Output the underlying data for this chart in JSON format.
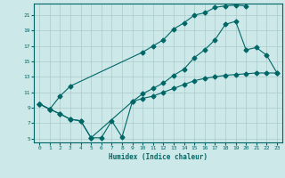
{
  "xlabel": "Humidex (Indice chaleur)",
  "bg_color": "#cce8e8",
  "grid_color": "#aacccc",
  "line_color": "#006666",
  "xlim": [
    -0.5,
    23.5
  ],
  "ylim": [
    4.5,
    22.5
  ],
  "yticks": [
    5,
    7,
    9,
    11,
    13,
    15,
    17,
    19,
    21
  ],
  "xticks": [
    0,
    1,
    2,
    3,
    4,
    5,
    6,
    7,
    8,
    9,
    10,
    11,
    12,
    13,
    14,
    15,
    16,
    17,
    18,
    19,
    20,
    21,
    22,
    23
  ],
  "line1_x": [
    0,
    1,
    2,
    3,
    10,
    11,
    12,
    13,
    14,
    15,
    16,
    17,
    18,
    19,
    20
  ],
  "line1_y": [
    9.5,
    8.8,
    10.5,
    11.8,
    16.2,
    17.0,
    17.8,
    19.2,
    20.0,
    21.0,
    21.3,
    22.0,
    22.2,
    22.3,
    22.2
  ],
  "line2_x": [
    0,
    1,
    2,
    3,
    4,
    5,
    9,
    10,
    11,
    12,
    13,
    14,
    15,
    16,
    17,
    18,
    19,
    20,
    21,
    22,
    23
  ],
  "line2_y": [
    9.5,
    8.8,
    8.2,
    7.5,
    7.3,
    5.1,
    9.8,
    10.8,
    11.5,
    12.2,
    13.2,
    14.0,
    15.5,
    16.5,
    17.8,
    19.8,
    20.2,
    16.5,
    16.8,
    15.8,
    13.5
  ],
  "line3_x": [
    0,
    1,
    2,
    3,
    4,
    5,
    6,
    7,
    8,
    9,
    10,
    11,
    12,
    13,
    14,
    15,
    16,
    17,
    18,
    19,
    20,
    21,
    22,
    23
  ],
  "line3_y": [
    9.5,
    8.8,
    8.2,
    7.5,
    7.3,
    5.1,
    5.1,
    7.3,
    5.2,
    9.8,
    10.2,
    10.5,
    11.0,
    11.5,
    12.0,
    12.5,
    12.8,
    13.0,
    13.2,
    13.3,
    13.4,
    13.5,
    13.5,
    13.5
  ]
}
